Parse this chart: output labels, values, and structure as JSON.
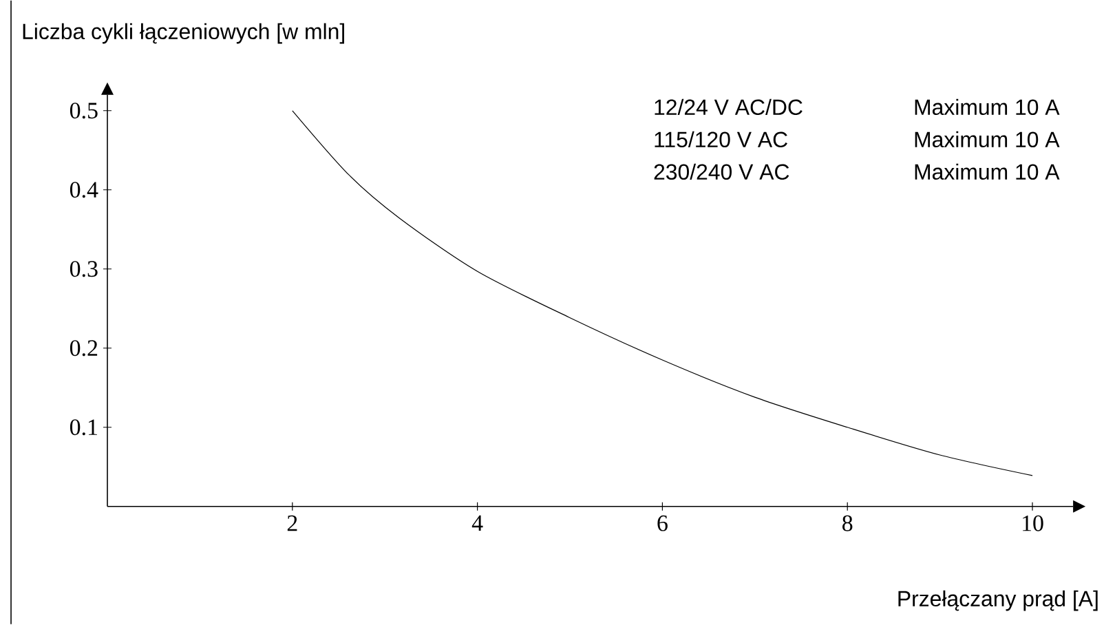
{
  "chart_data": {
    "type": "line",
    "xlabel": "Przełączany prąd [A]",
    "ylabel": "Liczba cykli łączeniowych [w mln]",
    "x": [
      2,
      2.61,
      3.16,
      4,
      4.99,
      6,
      7,
      8,
      9,
      10
    ],
    "series": [
      {
        "color": "#000000",
        "values": [
          0.5,
          0.419,
          0.364,
          0.297,
          0.239,
          0.185,
          0.138,
          0.1,
          0.065,
          0.039
        ]
      }
    ],
    "xlim": [
      0,
      10.44
    ],
    "ylim": [
      0,
      0.52
    ],
    "xticks": [
      2,
      4,
      6,
      8,
      10
    ],
    "yticks": [
      0.1,
      0.2,
      0.3,
      0.4,
      0.5
    ],
    "annotations": [
      "12/24 V AC/DC",
      "Maximum 10 A",
      "115/120 V AC",
      "Maximum 10 A",
      "230/240 V AC",
      "Maximum 10 A"
    ],
    "grid": false,
    "marker": "none",
    "line_style": "solid"
  }
}
